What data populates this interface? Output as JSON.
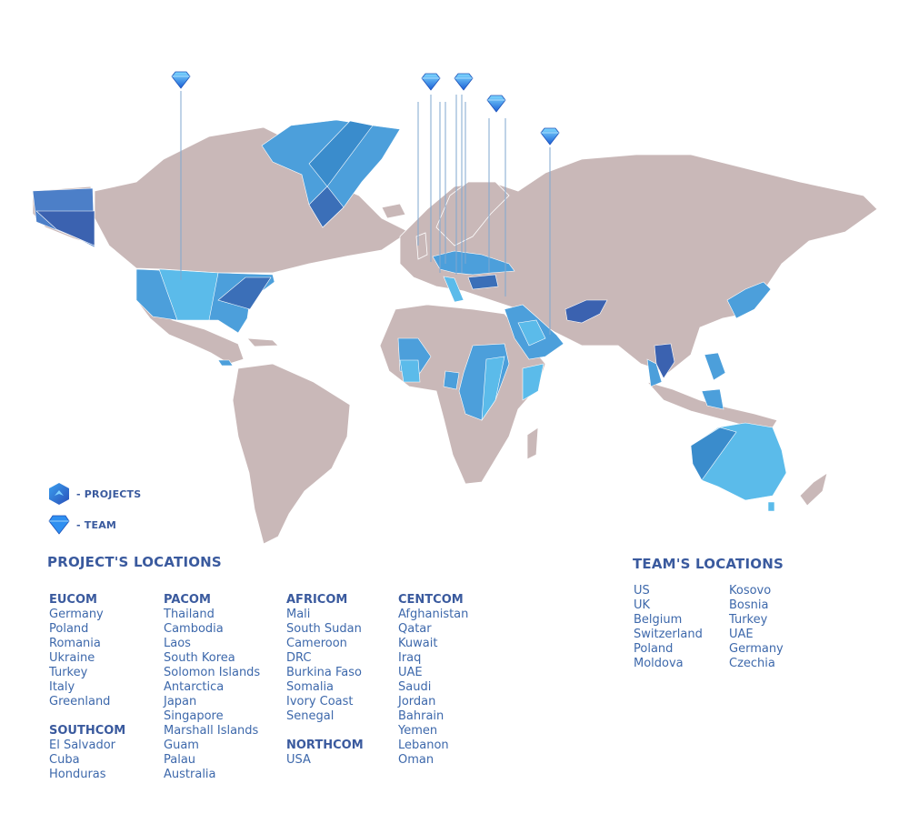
{
  "map": {
    "colors": {
      "land": "#c9b8b8",
      "highlight_light": "#5bbbea",
      "highlight_mid": "#4c9fdb",
      "highlight_dark": "#3b69b6"
    },
    "team_markers": [
      "United States",
      "United Kingdom",
      "Belgium",
      "Switzerland",
      "Poland",
      "Moldova",
      "Turkey",
      "UAE"
    ],
    "marker_icon": "diamond-icon"
  },
  "legend": {
    "projects_label": "- PROJECTS",
    "projects_icon": "project-hexagon-icon",
    "team_label": "- TEAM",
    "team_icon": "diamond-icon"
  },
  "projects": {
    "title": "PROJECT'S LOCATIONS",
    "groups": [
      {
        "name": "EUCOM",
        "items": [
          "Germany",
          "Poland",
          "Romania",
          "Ukraine",
          "Turkey",
          "Italy",
          "Greenland"
        ]
      },
      {
        "name": "SOUTHCOM",
        "items": [
          "El Salvador",
          "Cuba",
          "Honduras"
        ]
      },
      {
        "name": "PACOM",
        "items": [
          "Thailand",
          "Cambodia",
          "Laos",
          "South Korea",
          "Solomon Islands",
          "Antarctica",
          "Japan",
          "Singapore",
          "Marshall Islands",
          "Guam",
          "Palau",
          "Australia"
        ]
      },
      {
        "name": "AFRICOM",
        "items": [
          "Mali",
          "South Sudan",
          "Cameroon",
          "DRC",
          "Burkina Faso",
          "Somalia",
          "Ivory Coast",
          "Senegal"
        ]
      },
      {
        "name": "NORTHCOM",
        "items": [
          "USA"
        ]
      },
      {
        "name": "CENTCOM",
        "items": [
          "Afghanistan",
          "Qatar",
          "Kuwait",
          "Iraq",
          "UAE",
          "Saudi",
          "Jordan",
          "Bahrain",
          "Yemen",
          "Lebanon",
          "Oman"
        ]
      }
    ]
  },
  "team": {
    "title": "TEAM'S LOCATIONS",
    "col1": [
      "US",
      "UK",
      "Belgium",
      "Switzerland",
      "Poland",
      "Moldova"
    ],
    "col2": [
      "Kosovo",
      "Bosnia",
      "Turkey",
      "UAE",
      "Germany",
      "Czechia"
    ]
  }
}
